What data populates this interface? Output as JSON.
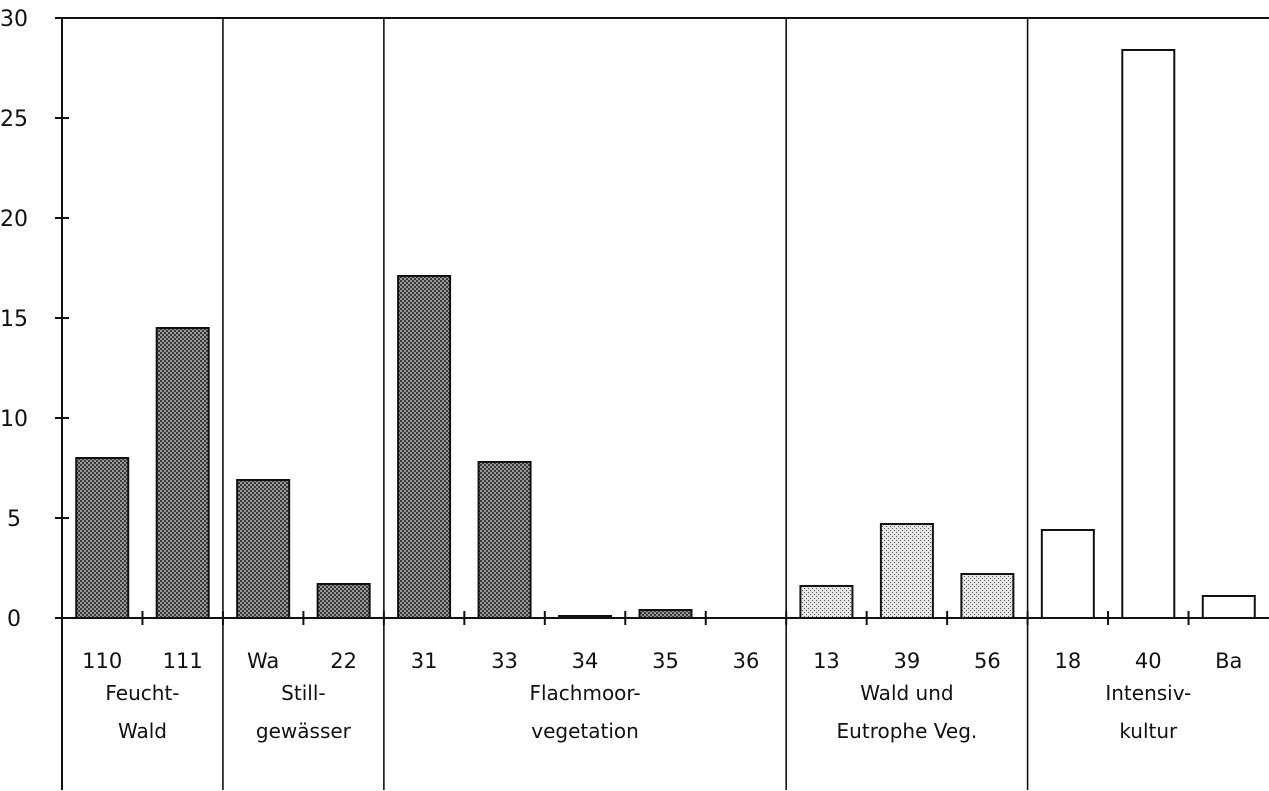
{
  "chart_data": {
    "type": "bar",
    "ylim": [
      0,
      30
    ],
    "yticks": [
      0,
      5,
      10,
      15,
      20,
      25,
      30
    ],
    "categories": [
      "110",
      "111",
      "Wa",
      "22",
      "31",
      "33",
      "34",
      "35",
      "36",
      "13",
      "39",
      "56",
      "18",
      "40",
      "Ba"
    ],
    "values": [
      8.0,
      14.5,
      6.9,
      1.7,
      17.1,
      7.8,
      0.1,
      0.4,
      0.0,
      1.6,
      4.7,
      2.2,
      4.4,
      28.4,
      1.1
    ],
    "groups": [
      {
        "lines": [
          "Feucht-",
          "Wald"
        ],
        "categories": [
          "110",
          "111"
        ],
        "fill": "dark"
      },
      {
        "lines": [
          "Still-",
          "gewässer"
        ],
        "categories": [
          "Wa",
          "22"
        ],
        "fill": "dark"
      },
      {
        "lines": [
          "Flachmoor-",
          "vegetation"
        ],
        "categories": [
          "31",
          "33",
          "34",
          "35",
          "36"
        ],
        "fill": "dark"
      },
      {
        "lines": [
          "Wald und",
          "Eutrophe Veg."
        ],
        "categories": [
          "13",
          "39",
          "56"
        ],
        "fill": "light"
      },
      {
        "lines": [
          "Intensiv-",
          "kultur"
        ],
        "categories": [
          "18",
          "40",
          "Ba"
        ],
        "fill": "white"
      }
    ],
    "fill_colors": {
      "dark": "#8c8c8c",
      "light": "#dadada",
      "white": "#ffffff"
    },
    "grid": false
  }
}
